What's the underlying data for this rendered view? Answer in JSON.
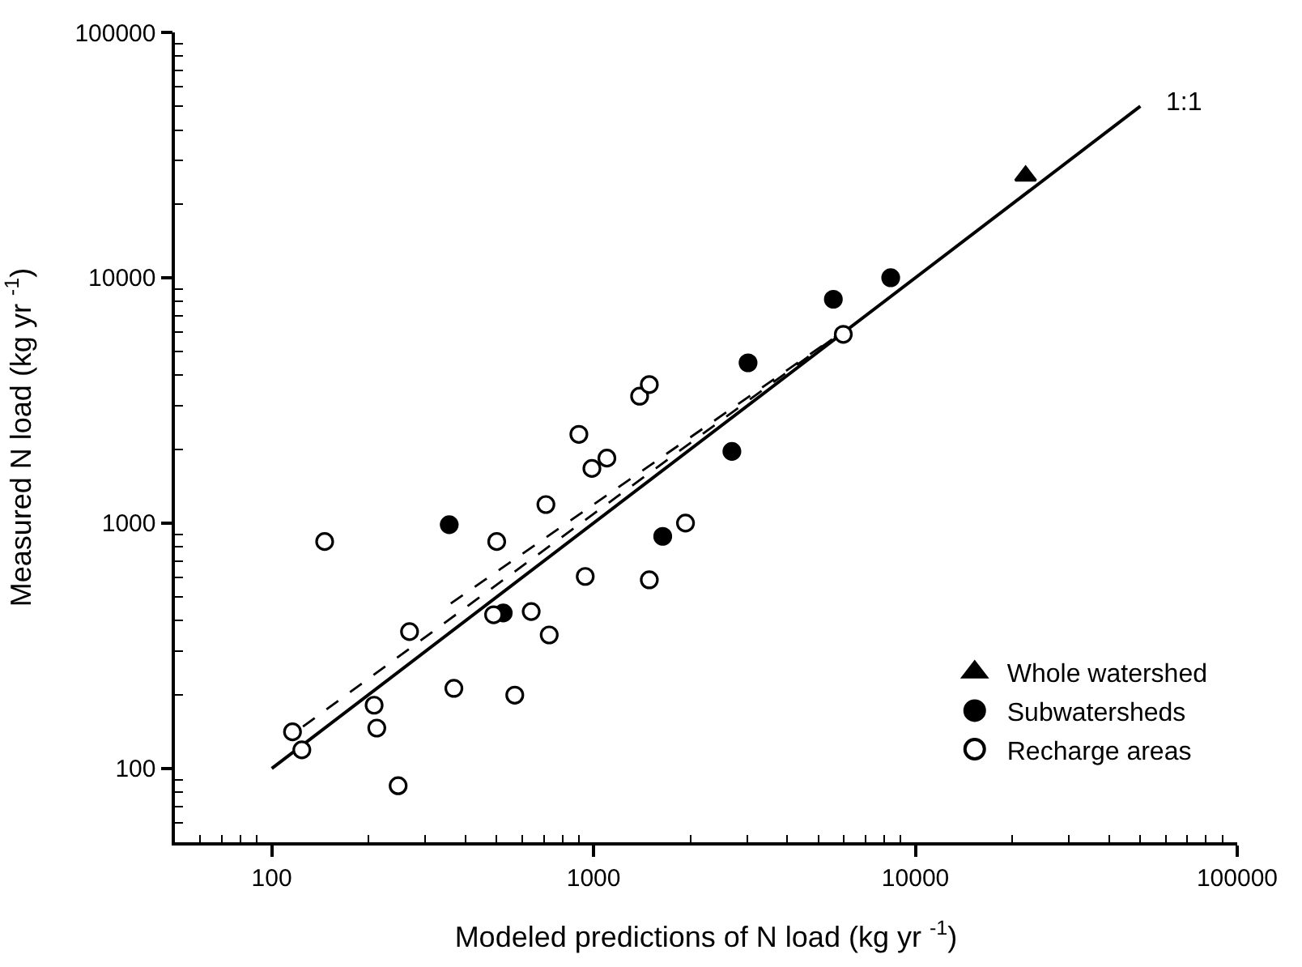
{
  "chart_data": {
    "type": "scatter",
    "xlabel": "Modeled predictions of N load (kg yr $^{-1}$)",
    "ylabel": "Measured N load (kg yr $^{-1}$)",
    "log": "xy",
    "legend": "bottom right",
    "xlim": [
      50,
      100000
    ],
    "ylim": [
      50,
      100000
    ],
    "xticks": [
      {
        "value": 60,
        "label": null
      },
      {
        "value": 70,
        "label": null
      },
      {
        "value": 80,
        "label": null
      },
      {
        "value": 90,
        "label": null
      },
      100,
      {
        "value": 200,
        "label": null
      },
      {
        "value": 300,
        "label": null
      },
      {
        "value": 400,
        "label": null
      },
      {
        "value": 500,
        "label": null
      },
      {
        "value": 600,
        "label": null
      },
      {
        "value": 700,
        "label": null
      },
      {
        "value": 800,
        "label": null
      },
      {
        "value": 900,
        "label": null
      },
      1000,
      {
        "value": 2000,
        "label": null
      },
      {
        "value": 3000,
        "label": null
      },
      {
        "value": 4000,
        "label": null
      },
      {
        "value": 5000,
        "label": null
      },
      {
        "value": 6000,
        "label": null
      },
      {
        "value": 7000,
        "label": null
      },
      {
        "value": 8000,
        "label": null
      },
      {
        "value": 9000,
        "label": null
      },
      10000,
      {
        "value": 20000,
        "label": null
      },
      {
        "value": 30000,
        "label": null
      },
      {
        "value": 40000,
        "label": null
      },
      {
        "value": 50000,
        "label": null
      },
      {
        "value": 60000,
        "label": null
      },
      {
        "value": 70000,
        "label": null
      },
      {
        "value": 80000,
        "label": null
      },
      {
        "value": 90000,
        "label": null
      },
      100000
    ],
    "yticks": [
      {
        "value": 60,
        "label": null
      },
      {
        "value": 70,
        "label": null
      },
      {
        "value": 80,
        "label": null
      },
      {
        "value": 90,
        "label": null
      },
      100,
      {
        "value": 200,
        "label": null
      },
      {
        "value": 300,
        "label": null
      },
      {
        "value": 400,
        "label": null
      },
      {
        "value": 500,
        "label": null
      },
      {
        "value": 600,
        "label": null
      },
      {
        "value": 700,
        "label": null
      },
      {
        "value": 800,
        "label": null
      },
      {
        "value": 900,
        "label": null
      },
      1000,
      {
        "value": 2000,
        "label": null
      },
      {
        "value": 3000,
        "label": null
      },
      {
        "value": 4000,
        "label": null
      },
      {
        "value": 5000,
        "label": null
      },
      {
        "value": 6000,
        "label": null
      },
      {
        "value": 7000,
        "label": null
      },
      {
        "value": 8000,
        "label": null
      },
      {
        "value": 9000,
        "label": null
      },
      10000,
      {
        "value": 20000,
        "label": null
      },
      {
        "value": 30000,
        "label": null
      },
      {
        "value": 40000,
        "label": null
      },
      {
        "value": 50000,
        "label": null
      },
      {
        "value": 60000,
        "label": null
      },
      {
        "value": 70000,
        "label": null
      },
      {
        "value": 80000,
        "label": null
      },
      {
        "value": 90000,
        "label": null
      },
      100000
    ],
    "annotations": [
      {
        "text": "1:1",
        "x": 50000,
        "y": 50000
      }
    ],
    "series": [
      {
        "type": "line",
        "color": "#000000",
        "line_style": "solid",
        "marker": "none",
        "x": [
          100,
          50000
        ],
        "values": [
          100,
          50000
        ]
      },
      {
        "type": "line",
        "color": "#000000",
        "line_style": "dashed",
        "marker": "none",
        "x": [
          125,
          5800
        ],
        "values": [
          148,
          5900
        ]
      },
      {
        "type": "line",
        "color": "#000000",
        "line_style": "dashed",
        "marker": "none",
        "x": [
          360,
          5800
        ],
        "values": [
          470,
          5900
        ]
      },
      {
        "name": "Whole watershed",
        "color": "#000000",
        "marker": "triangle",
        "x": [
          22000
        ],
        "values": [
          26000
        ]
      },
      {
        "name": "Subwatersheds",
        "color": "#000000",
        "marker": "circle",
        "x": [
          356,
          524,
          1640,
          3020,
          2690,
          5560,
          8380
        ],
        "values": [
          985,
          430,
          883,
          4500,
          1960,
          8170,
          10000
        ]
      },
      {
        "name": "Recharge areas",
        "color": "#ffffff",
        "marker": "circle",
        "x": [
          146,
          500,
          711,
          942,
          1490,
          1930,
          489,
          640,
          728,
          268,
          368,
          569,
          208,
          212,
          116,
          124,
          247,
          900,
          988,
          1100,
          1390,
          1490,
          5970
        ],
        "values": [
          841,
          841,
          1190,
          606,
          587,
          1000,
          423,
          436,
          350,
          361,
          212,
          199,
          181,
          146,
          141,
          119,
          85,
          2300,
          1670,
          1840,
          3290,
          3670,
          5880
        ]
      }
    ]
  }
}
